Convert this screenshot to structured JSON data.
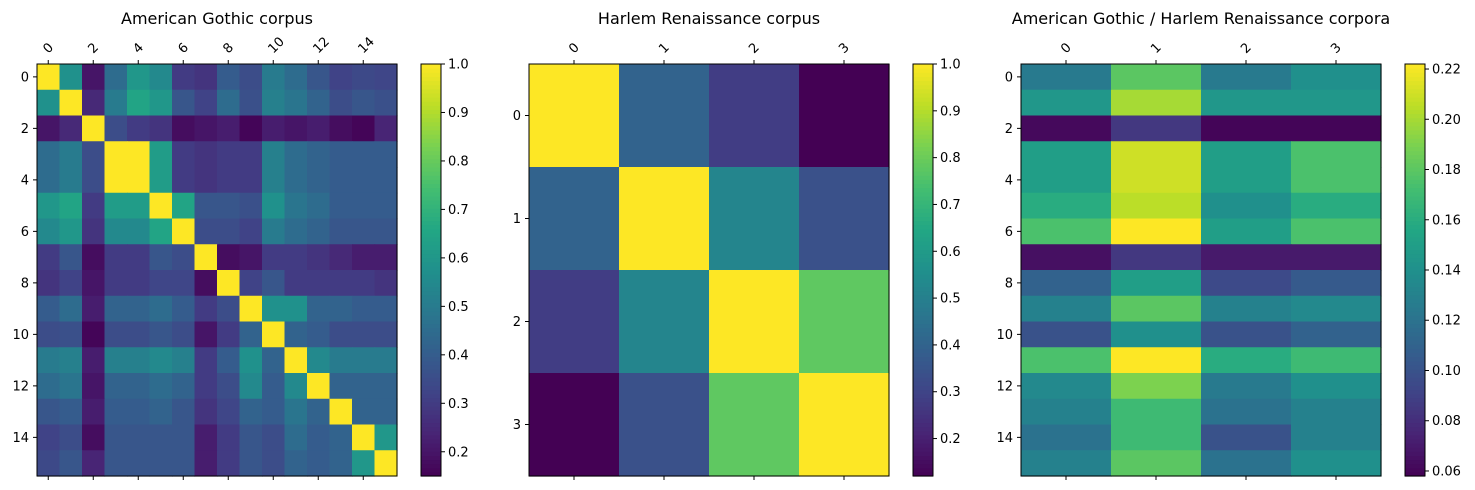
{
  "chart_data": [
    {
      "type": "heatmap",
      "title": "American Gothic corpus",
      "x_ticks": [
        "0",
        "2",
        "4",
        "6",
        "8",
        "10",
        "12",
        "14"
      ],
      "y_ticks": [
        "0",
        "2",
        "4",
        "6",
        "8",
        "10",
        "12",
        "14"
      ],
      "colormap": "viridis",
      "vmin": 0.15,
      "vmax": 1.0,
      "colorbar_ticks": [
        "0.2",
        "0.3",
        "0.4",
        "0.5",
        "0.6",
        "0.7",
        "0.8",
        "0.9",
        "1.0"
      ],
      "values": [
        [
          1.0,
          0.58,
          0.2,
          0.45,
          0.6,
          0.55,
          0.3,
          0.28,
          0.4,
          0.35,
          0.5,
          0.45,
          0.38,
          0.32,
          0.34,
          0.33
        ],
        [
          0.58,
          1.0,
          0.25,
          0.5,
          0.65,
          0.6,
          0.38,
          0.32,
          0.45,
          0.36,
          0.52,
          0.48,
          0.42,
          0.35,
          0.38,
          0.36
        ],
        [
          0.2,
          0.25,
          1.0,
          0.35,
          0.3,
          0.28,
          0.18,
          0.2,
          0.22,
          0.16,
          0.22,
          0.2,
          0.22,
          0.18,
          0.16,
          0.24
        ],
        [
          0.45,
          0.5,
          0.35,
          1.0,
          1.0,
          0.62,
          0.3,
          0.28,
          0.3,
          0.3,
          0.52,
          0.45,
          0.42,
          0.4,
          0.4,
          0.4
        ],
        [
          0.45,
          0.5,
          0.35,
          1.0,
          1.0,
          0.62,
          0.3,
          0.28,
          0.3,
          0.3,
          0.52,
          0.45,
          0.42,
          0.4,
          0.4,
          0.4
        ],
        [
          0.6,
          0.65,
          0.3,
          0.62,
          0.62,
          1.0,
          0.65,
          0.38,
          0.38,
          0.36,
          0.58,
          0.48,
          0.45,
          0.4,
          0.4,
          0.4
        ],
        [
          0.55,
          0.6,
          0.28,
          0.55,
          0.55,
          0.65,
          1.0,
          0.35,
          0.35,
          0.32,
          0.5,
          0.45,
          0.42,
          0.38,
          0.38,
          0.38
        ],
        [
          0.3,
          0.38,
          0.18,
          0.3,
          0.3,
          0.38,
          0.35,
          1.0,
          0.18,
          0.2,
          0.3,
          0.3,
          0.28,
          0.25,
          0.22,
          0.22
        ],
        [
          0.28,
          0.32,
          0.2,
          0.3,
          0.3,
          0.33,
          0.33,
          0.18,
          1.0,
          0.32,
          0.38,
          0.3,
          0.3,
          0.3,
          0.3,
          0.28
        ],
        [
          0.4,
          0.45,
          0.22,
          0.42,
          0.42,
          0.45,
          0.4,
          0.3,
          0.35,
          1.0,
          0.58,
          0.58,
          0.42,
          0.42,
          0.4,
          0.4
        ],
        [
          0.35,
          0.36,
          0.16,
          0.35,
          0.35,
          0.38,
          0.35,
          0.2,
          0.3,
          0.42,
          1.0,
          0.42,
          0.4,
          0.35,
          0.35,
          0.35
        ],
        [
          0.5,
          0.52,
          0.22,
          0.52,
          0.52,
          0.55,
          0.52,
          0.3,
          0.4,
          0.58,
          0.42,
          1.0,
          0.55,
          0.5,
          0.5,
          0.5
        ],
        [
          0.45,
          0.48,
          0.2,
          0.42,
          0.42,
          0.45,
          0.42,
          0.3,
          0.35,
          0.55,
          0.4,
          0.55,
          1.0,
          0.42,
          0.42,
          0.42
        ],
        [
          0.38,
          0.4,
          0.22,
          0.4,
          0.4,
          0.42,
          0.38,
          0.28,
          0.33,
          0.42,
          0.4,
          0.48,
          0.42,
          1.0,
          0.42,
          0.42
        ],
        [
          0.32,
          0.35,
          0.18,
          0.38,
          0.38,
          0.38,
          0.38,
          0.22,
          0.3,
          0.38,
          0.35,
          0.45,
          0.4,
          0.42,
          1.0,
          0.6
        ],
        [
          0.34,
          0.38,
          0.24,
          0.38,
          0.38,
          0.38,
          0.38,
          0.22,
          0.3,
          0.38,
          0.35,
          0.42,
          0.4,
          0.42,
          0.6,
          1.0
        ]
      ]
    },
    {
      "type": "heatmap",
      "title": "Harlem Renaissance corpus",
      "x_ticks": [
        "0",
        "1",
        "2",
        "3"
      ],
      "y_ticks": [
        "0",
        "1",
        "2",
        "3"
      ],
      "colormap": "viridis",
      "vmin": 0.12,
      "vmax": 1.0,
      "colorbar_ticks": [
        "0.2",
        "0.3",
        "0.4",
        "0.5",
        "0.6",
        "0.7",
        "0.8",
        "0.9",
        "1.0"
      ],
      "values": [
        [
          1.0,
          0.4,
          0.28,
          0.12
        ],
        [
          0.4,
          1.0,
          0.52,
          0.34
        ],
        [
          0.28,
          0.52,
          1.0,
          0.78
        ],
        [
          0.12,
          0.34,
          0.78,
          1.0
        ]
      ]
    },
    {
      "type": "heatmap",
      "title": "American Gothic / Harlem Renaissance corpora",
      "x_ticks": [
        "0",
        "1",
        "2",
        "3"
      ],
      "y_ticks": [
        "0",
        "2",
        "4",
        "6",
        "8",
        "10",
        "12",
        "14"
      ],
      "colormap": "viridis",
      "vmin": 0.058,
      "vmax": 0.222,
      "colorbar_ticks": [
        "0.06",
        "0.08",
        "0.10",
        "0.12",
        "0.14",
        "0.16",
        "0.18",
        "0.20",
        "0.22"
      ],
      "values": [
        [
          0.125,
          0.18,
          0.125,
          0.14
        ],
        [
          0.145,
          0.2,
          0.145,
          0.145
        ],
        [
          0.062,
          0.085,
          0.06,
          0.06
        ],
        [
          0.15,
          0.21,
          0.15,
          0.175
        ],
        [
          0.15,
          0.21,
          0.15,
          0.175
        ],
        [
          0.16,
          0.205,
          0.14,
          0.16
        ],
        [
          0.175,
          0.222,
          0.15,
          0.175
        ],
        [
          0.065,
          0.085,
          0.07,
          0.07
        ],
        [
          0.11,
          0.15,
          0.095,
          0.105
        ],
        [
          0.13,
          0.18,
          0.13,
          0.135
        ],
        [
          0.1,
          0.14,
          0.1,
          0.11
        ],
        [
          0.175,
          0.222,
          0.16,
          0.17
        ],
        [
          0.135,
          0.19,
          0.125,
          0.14
        ],
        [
          0.13,
          0.17,
          0.12,
          0.13
        ],
        [
          0.12,
          0.17,
          0.1,
          0.13
        ],
        [
          0.13,
          0.18,
          0.12,
          0.14
        ]
      ]
    }
  ]
}
